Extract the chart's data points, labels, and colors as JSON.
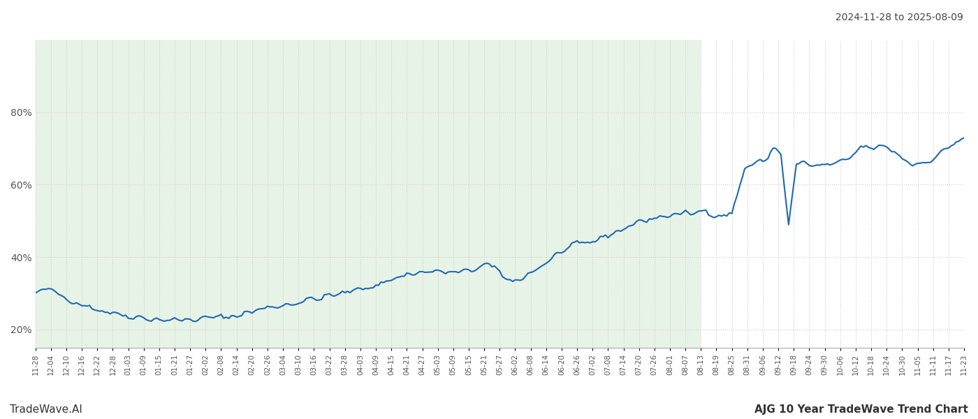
{
  "title_date_range": "2024-11-28 to 2025-08-09",
  "footer_left": "TradeWave.AI",
  "footer_right": "AJG 10 Year TradeWave Trend Chart",
  "line_color": "#1f6ab0",
  "line_width": 1.5,
  "bg_color": "#ffffff",
  "green_bg_color": "#d6ead6",
  "green_bg_alpha": 0.55,
  "grid_color": "#cccccc",
  "grid_style": ":",
  "ylim": [
    0.15,
    1.0
  ],
  "yticks": [
    0.2,
    0.4,
    0.6,
    0.8
  ],
  "ytick_labels": [
    "20%",
    "40%",
    "60%",
    "80%"
  ],
  "green_region_start": "2024-11-28",
  "green_region_end": "2025-08-13"
}
